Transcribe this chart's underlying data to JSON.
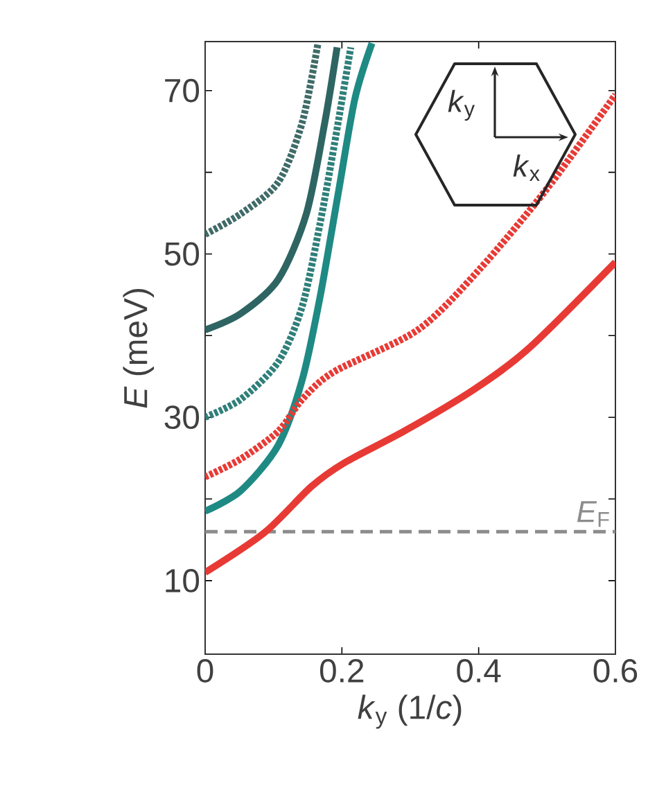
{
  "chart_data": {
    "type": "line",
    "xlabel": "*k*$_{y}$ (1/*c*)",
    "ylabel": "*E* (meV)",
    "xlim": [
      0,
      0.6
    ],
    "ylim": [
      1,
      76
    ],
    "xticks": [
      {
        "value": 0,
        "label": "0"
      },
      0.2,
      0.4,
      0.6
    ],
    "yticks": [
      10,
      {
        "value": 20,
        "label": null
      },
      30,
      {
        "value": 40,
        "label": null
      },
      50,
      {
        "value": 60,
        "label": null
      },
      70
    ],
    "grid": false,
    "marker": "none",
    "series": [
      {
        "color": "#3f6b68",
        "line_style": "dotted",
        "x": [
          0,
          0.052,
          0.107,
          0.142,
          0.165
        ],
        "values": [
          52.4,
          54.9,
          58.8,
          66.1,
          75.8
        ]
      },
      {
        "color": "#2e6563",
        "line_style": "solid",
        "x": [
          0,
          0.052,
          0.107,
          0.148,
          0.175,
          0.193
        ],
        "values": [
          40.7,
          42.7,
          46.9,
          54.9,
          66.1,
          75.3
        ]
      },
      {
        "color": "#2f7f7a",
        "line_style": "dotted",
        "x": [
          0,
          0.052,
          0.107,
          0.142,
          0.168,
          0.189,
          0.213
        ],
        "values": [
          30,
          32.2,
          36.8,
          43.6,
          53.7,
          63.4,
          75.3
        ]
      },
      {
        "color": "#1f8a84",
        "line_style": "solid",
        "x": [
          0,
          0.052,
          0.107,
          0.142,
          0.168,
          0.195,
          0.219,
          0.244
        ],
        "values": [
          18.5,
          21,
          26.6,
          34.6,
          44.7,
          57.6,
          69,
          75.8
        ]
      },
      {
        "color": "#e83a35",
        "line_style": "dotted",
        "x": [
          0,
          0.052,
          0.107,
          0.142,
          0.189,
          0.311,
          0.4,
          0.5,
          0.6
        ],
        "values": [
          22.7,
          24.9,
          28.3,
          32.2,
          35.6,
          40.7,
          48,
          58,
          69.5
        ]
      },
      {
        "color": "#e83a35",
        "line_style": "solid",
        "x": [
          0,
          0.087,
          0.155,
          0.203,
          0.291,
          0.393,
          0.474,
          0.6
        ],
        "values": [
          11,
          15.9,
          21.5,
          24.4,
          28.3,
          33.4,
          38.5,
          49
        ]
      }
    ],
    "ref_lines": [
      {
        "axis": "y",
        "value": 16,
        "label": "*E*$_{F}$",
        "color": "#8c8c8c",
        "line_style": "dashed"
      }
    ],
    "annotations": [
      "*k*$_{y}$",
      "*k*$_{x}$"
    ]
  }
}
